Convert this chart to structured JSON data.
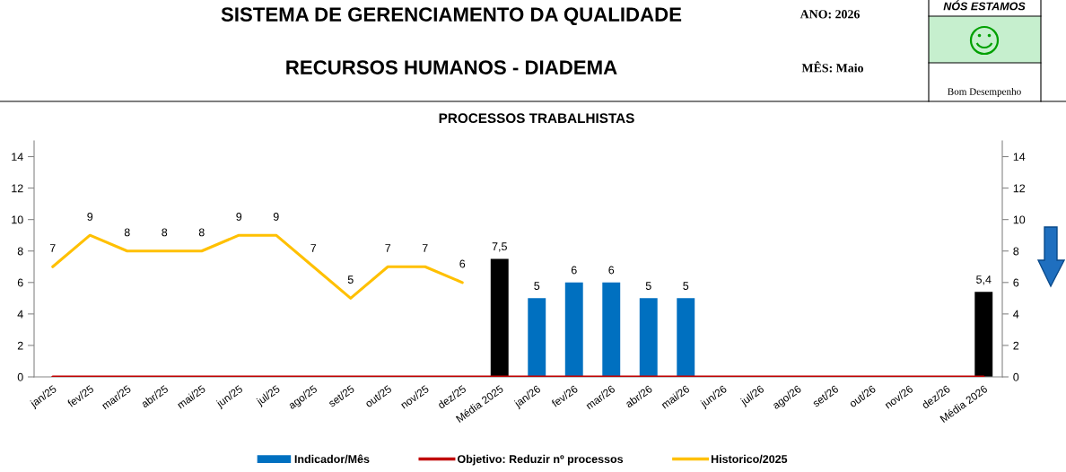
{
  "chart_data": {
    "type": "bar",
    "title": "PROCESSOS TRABALHISTAS",
    "annotations": [
      "SISTEMA DE GERENCIAMENTO DA QUALIDADE",
      "RECURSOS HUMANOS - DIADEMA",
      "ANO: 2026",
      "MÊS: Maio",
      "NÓS ESTAMOS",
      "Bom Desempenho"
    ],
    "categories": [
      "jan/25",
      "fev/25",
      "mar/25",
      "abr/25",
      "mai/25",
      "jun/25",
      "jul/25",
      "ago/25",
      "set/25",
      "out/25",
      "nov/25",
      "dez/25",
      "Média 2025",
      "jan/26",
      "fev/26",
      "mar/26",
      "abr/26",
      "mai/26",
      "jun/26",
      "jul/26",
      "ago/26",
      "set/26",
      "out/26",
      "nov/26",
      "dez/26",
      "Média 2026"
    ],
    "series": [
      {
        "name": "Indicador/Mês",
        "color": "#0070c0",
        "colors": [
          "#0070c0",
          "#0070c0",
          "#0070c0",
          "#0070c0",
          "#0070c0",
          "#0070c0",
          "#0070c0",
          "#0070c0",
          "#0070c0",
          "#0070c0",
          "#0070c0",
          "#0070c0",
          "#000000",
          "#0070c0",
          "#0070c0",
          "#0070c0",
          "#0070c0",
          "#0070c0",
          "#0070c0",
          "#0070c0",
          "#0070c0",
          "#0070c0",
          "#0070c0",
          "#0070c0",
          "#0070c0",
          "#000000"
        ],
        "values": [
          null,
          null,
          null,
          null,
          null,
          null,
          null,
          null,
          null,
          null,
          null,
          null,
          7.5,
          5,
          6,
          6,
          5,
          5,
          null,
          null,
          null,
          null,
          null,
          null,
          null,
          5.4
        ],
        "value_labels": [
          null,
          null,
          null,
          null,
          null,
          null,
          null,
          null,
          null,
          null,
          null,
          null,
          "7,5",
          "5",
          "6",
          "6",
          "5",
          "5",
          null,
          null,
          null,
          null,
          null,
          null,
          null,
          "5,4"
        ]
      },
      {
        "name": "Objetivo: Reduzir nº processos",
        "type": "line",
        "color": "#c00000",
        "values": [
          0,
          0,
          0,
          0,
          0,
          0,
          0,
          0,
          0,
          0,
          0,
          0,
          0,
          0,
          0,
          0,
          0,
          0,
          0,
          0,
          0,
          0,
          0,
          0,
          0,
          0
        ]
      },
      {
        "name": "Historico/2025",
        "type": "line",
        "color": "#ffc000",
        "values": [
          7,
          9,
          8,
          8,
          8,
          9,
          9,
          7,
          5,
          7,
          7,
          6,
          null,
          null,
          null,
          null,
          null,
          null,
          null,
          null,
          null,
          null,
          null,
          null,
          null,
          null
        ],
        "value_labels": [
          "7",
          "9",
          "8",
          "8",
          "8",
          "9",
          "9",
          "7",
          "5",
          "7",
          "7",
          "6",
          null,
          null,
          null,
          null,
          null,
          null,
          null,
          null,
          null,
          null,
          null,
          null,
          null,
          null
        ]
      }
    ],
    "ylim": [
      0,
      15
    ],
    "yticks": [
      0,
      2,
      4,
      6,
      8,
      10,
      12,
      14
    ],
    "y2lim": [
      0,
      15
    ],
    "y2ticks": [
      0,
      2,
      4,
      6,
      8,
      10,
      12,
      14
    ],
    "legend": "bottom"
  }
}
